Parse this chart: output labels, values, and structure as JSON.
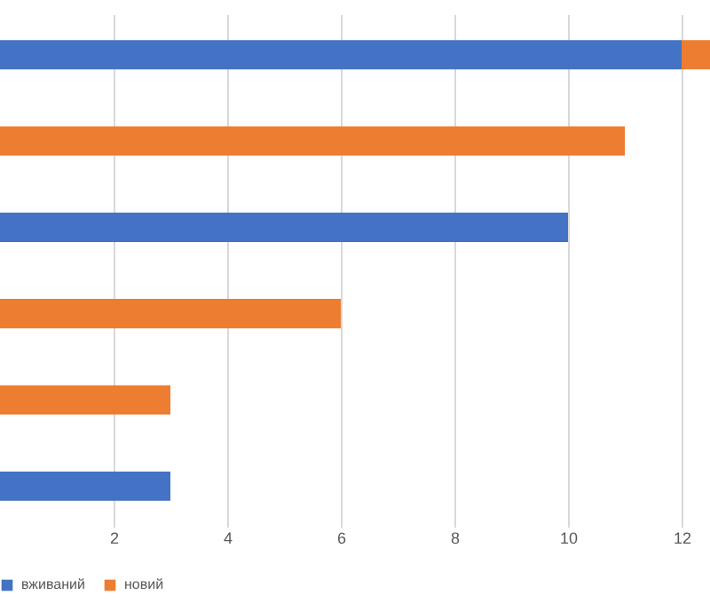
{
  "chart_data": {
    "type": "bar",
    "orientation": "horizontal",
    "stacked": true,
    "categories": [
      null,
      null,
      null,
      null,
      null,
      null
    ],
    "series": [
      {
        "name": "вживаний",
        "color": "#4472c4",
        "values": [
          12,
          null,
          10,
          null,
          null,
          3
        ]
      },
      {
        "name": "новий",
        "color": "#ed7d31",
        "values": [
          0.5,
          11,
          null,
          6,
          3,
          null
        ]
      }
    ],
    "xlim": [
      0,
      12.5
    ],
    "xticks": [
      2,
      4,
      6,
      8,
      10,
      12
    ],
    "grid": "x",
    "legend": "bottom"
  }
}
